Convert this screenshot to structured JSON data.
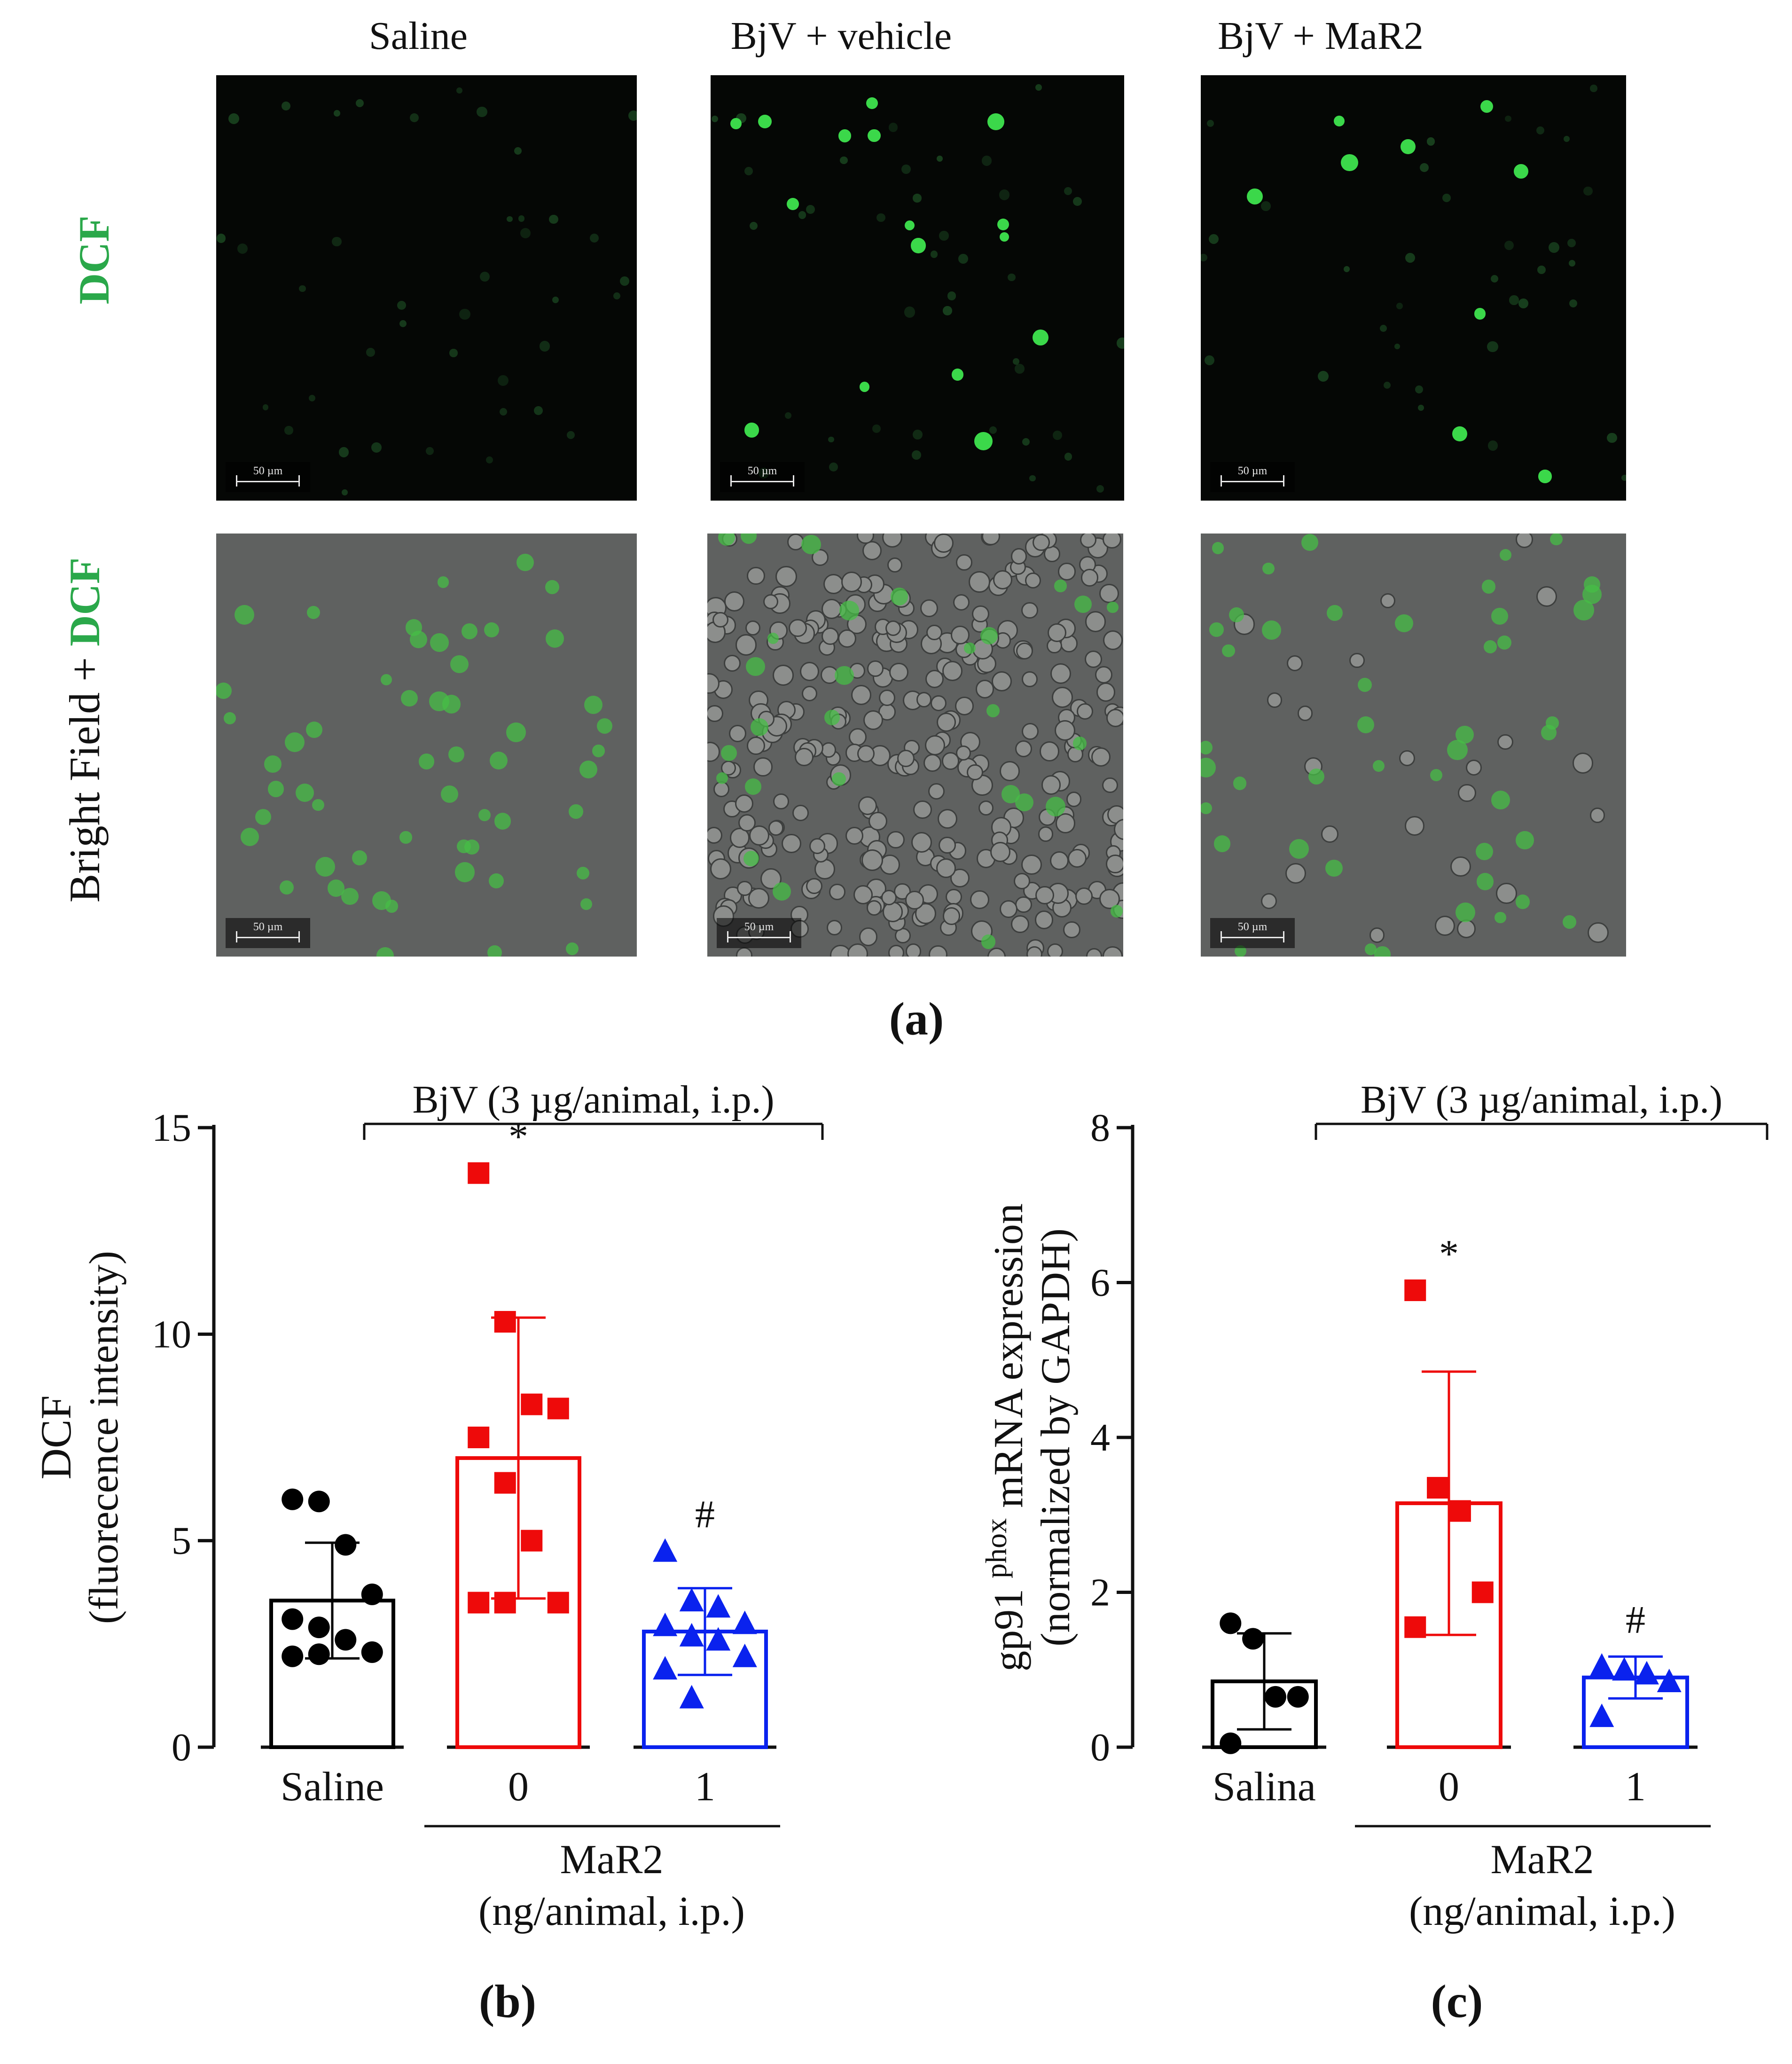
{
  "figure_a": {
    "column_titles": [
      "Saline",
      "BjV + vehicle",
      "BjV + MaR2"
    ],
    "row_label_top": "DCF",
    "row_label_bottom_prefix": "Bright Field + ",
    "row_label_bottom_suffix": "DCF",
    "scale_bar_label": "50 µm",
    "panel_label": "(a)"
  },
  "colors": {
    "saline": "#000000",
    "vehicle": "#ee0a0a",
    "mar2": "#0a22ee",
    "dcf_green": "#2aa84a"
  },
  "chart_data": [
    {
      "type": "bar",
      "panel_label": "(b)",
      "title": "BjV (3 µg/animal, i.p.)",
      "ylabel": "DCF",
      "ylabel_sub": "(fluorecence intensity)",
      "xlabel": "MaR2",
      "xlabel_sub": "(ng/animal, i.p.)",
      "categories": [
        "Saline",
        "0",
        "1"
      ],
      "ylim": [
        0,
        15
      ],
      "yticks": [
        0,
        5,
        10,
        15
      ],
      "values": [
        3.55,
        7.0,
        2.8
      ],
      "errors": [
        1.4,
        3.4,
        1.05
      ],
      "points": [
        [
          6.0,
          5.95,
          4.9,
          3.7,
          3.1,
          2.9,
          2.6,
          2.3,
          2.2,
          2.25
        ],
        [
          13.9,
          10.3,
          8.3,
          8.2,
          7.5,
          6.4,
          5.0,
          3.5,
          3.5,
          3.5
        ],
        [
          4.75,
          3.55,
          3.4,
          3.0,
          2.95,
          2.7,
          2.6,
          2.2,
          1.9,
          1.2
        ]
      ],
      "markers": [
        "circle",
        "square",
        "triangle"
      ],
      "annotations": [
        "",
        "*",
        "#"
      ]
    },
    {
      "type": "bar",
      "panel_label": "(c)",
      "title": "BjV (3 µg/animal, i.p.)",
      "ylabel_prefix": "gp91",
      "ylabel_superscript": "phox",
      "ylabel_suffix": "mRNA expression",
      "ylabel_sub": "(normalized by GAPDH)",
      "xlabel": "MaR2",
      "xlabel_sub": "(ng/animal, i.p.)",
      "categories": [
        "Salina",
        "0",
        "1"
      ],
      "ylim": [
        0,
        8
      ],
      "yticks": [
        0,
        2,
        4,
        6,
        8
      ],
      "values": [
        0.85,
        3.15,
        0.9
      ],
      "errors": [
        0.62,
        1.7,
        0.27
      ],
      "points": [
        [
          1.6,
          1.4,
          0.65,
          0.65,
          0.05
        ],
        [
          5.9,
          3.35,
          3.05,
          2.0,
          1.55
        ],
        [
          1.05,
          1.0,
          0.95,
          0.85,
          0.4
        ]
      ],
      "markers": [
        "circle",
        "square",
        "triangle"
      ],
      "annotations": [
        "",
        "*",
        "#"
      ]
    }
  ]
}
